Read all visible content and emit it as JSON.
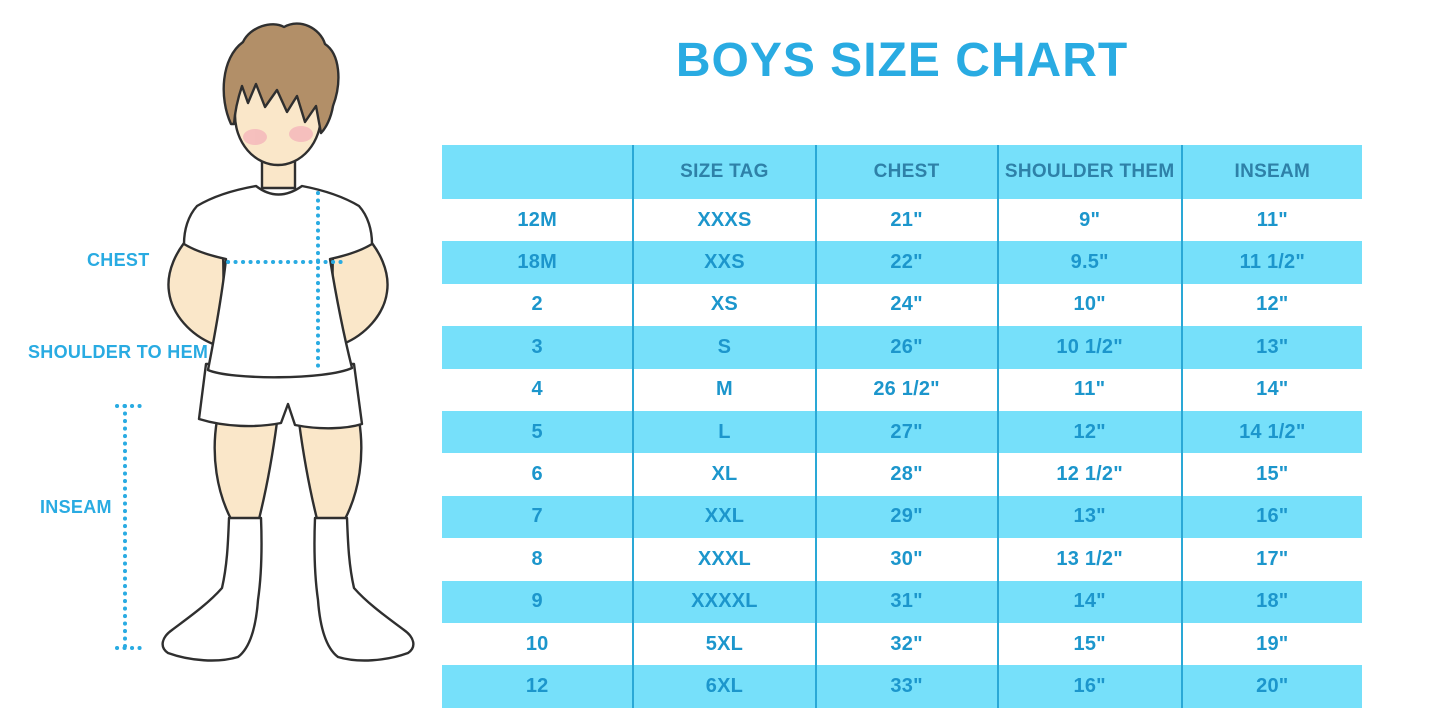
{
  "title": "BOYS SIZE CHART",
  "figure": {
    "illustration": "cartoon boy, front view, hands on hips, white tee, white shorts, white knee socks",
    "labels": {
      "chest": "CHEST",
      "shoulder_to_hem": "SHOULDER TO HEM",
      "inseam": "INSEAM"
    }
  },
  "chart_data": {
    "type": "table",
    "title": "BOYS SIZE CHART",
    "columns": [
      "",
      "SIZE TAG",
      "CHEST",
      "SHOULDER THEM",
      "INSEAM"
    ],
    "rows": [
      [
        "12M",
        "XXXS",
        "21\"",
        "9\"",
        "11\""
      ],
      [
        "18M",
        "XXS",
        "22\"",
        "9.5\"",
        "11 1/2\""
      ],
      [
        "2",
        "XS",
        "24\"",
        "10\"",
        "12\""
      ],
      [
        "3",
        "S",
        "26\"",
        "10 1/2\"",
        "13\""
      ],
      [
        "4",
        "M",
        "26 1/2\"",
        "11\"",
        "14\""
      ],
      [
        "5",
        "L",
        "27\"",
        "12\"",
        "14 1/2\""
      ],
      [
        "6",
        "XL",
        "28\"",
        "12 1/2\"",
        "15\""
      ],
      [
        "7",
        "XXL",
        "29\"",
        "13\"",
        "16\""
      ],
      [
        "8",
        "XXXL",
        "30\"",
        "13 1/2\"",
        "17\""
      ],
      [
        "9",
        "XXXXL",
        "31\"",
        "14\"",
        "18\""
      ],
      [
        "10",
        "5XL",
        "32\"",
        "15\"",
        "19\""
      ],
      [
        "12",
        "6XL",
        "33\"",
        "16\"",
        "20\""
      ]
    ],
    "layout_hints": {
      "row_striping": "header cyan, body rows alternate white/cyan starting white",
      "units": "inches"
    }
  },
  "colors": {
    "accent_blue": "#29ABE2",
    "table_text_blue": "#1C96CC",
    "header_text_blue": "#2E81A8",
    "row_fill_cyan": "#76E0FA",
    "divider_blue": "#2AA8D6",
    "skin": "#FAE7C9",
    "hair_brown": "#B28F68",
    "blush_pink": "#F2A0B5",
    "background": "#FFFFFF"
  }
}
